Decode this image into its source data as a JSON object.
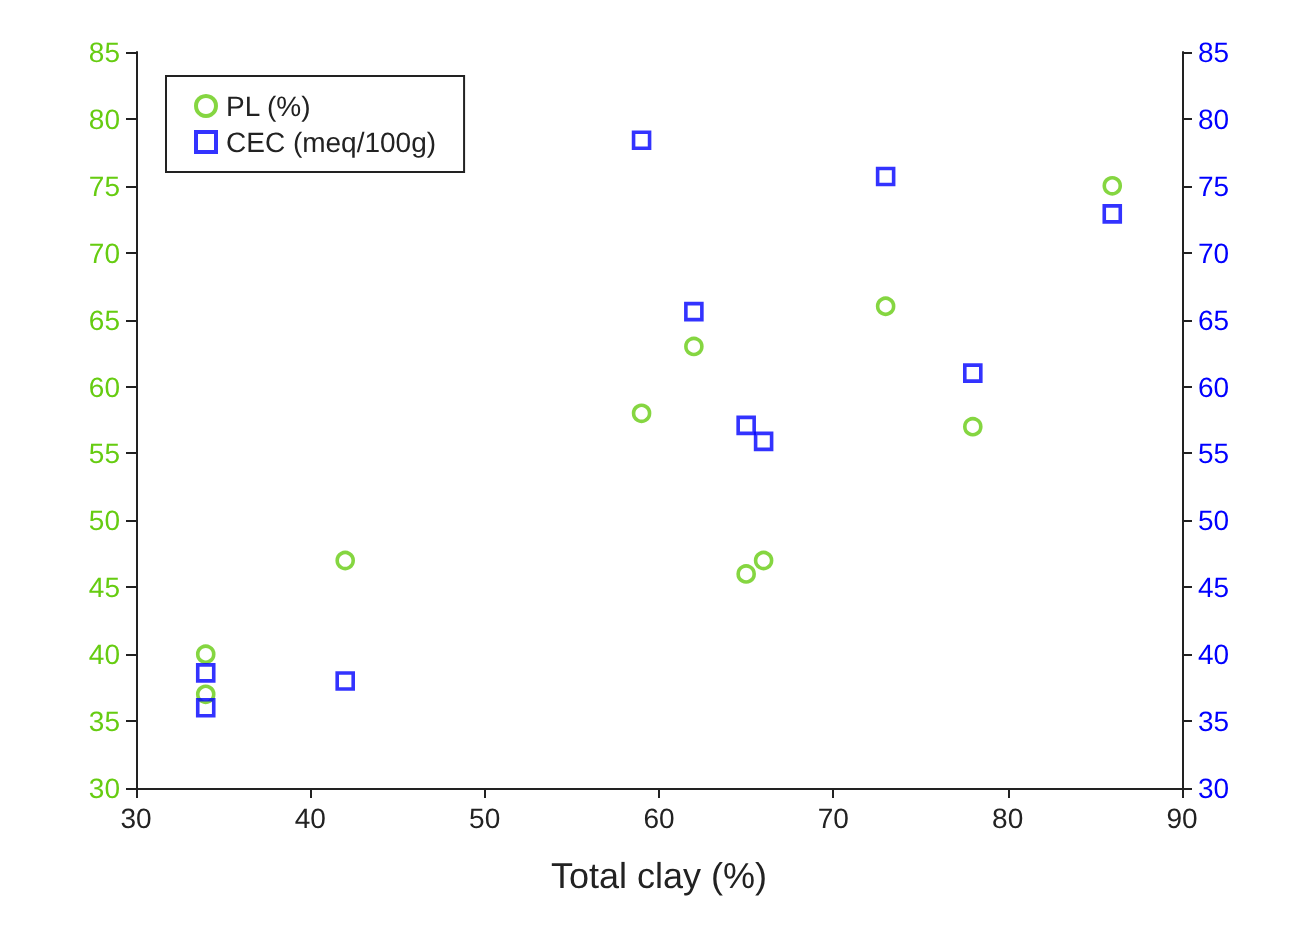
{
  "chart_data": {
    "type": "scatter",
    "xlabel": "Total clay (%)",
    "x": [
      34,
      34,
      42,
      59,
      62,
      65,
      66,
      73,
      78,
      86
    ],
    "series": [
      {
        "name": "PL (%)",
        "color": "#66cc11",
        "marker": "circle",
        "values": [
          40,
          37,
          47,
          58,
          63,
          46,
          47,
          66,
          57,
          75
        ]
      },
      {
        "name": "CEC (meq/100g)",
        "color": "#0000ff",
        "marker": "square",
        "axis": "y2",
        "values": [
          38.6,
          36,
          38,
          78.4,
          65.6,
          57.1,
          55.9,
          75.7,
          61,
          72.9
        ]
      }
    ],
    "xlim": [
      30,
      90
    ],
    "xticks": [
      30,
      40,
      50,
      60,
      70,
      80,
      90
    ],
    "ylim": [
      30,
      85
    ],
    "yticks": [
      30,
      35,
      40,
      45,
      50,
      55,
      60,
      65,
      70,
      75,
      80,
      85
    ],
    "y2lim": [
      30,
      85
    ],
    "y2ticks": [
      30,
      35,
      40,
      45,
      50,
      55,
      60,
      65,
      70,
      75,
      80,
      85
    ],
    "grid": false,
    "legend": "top left"
  }
}
